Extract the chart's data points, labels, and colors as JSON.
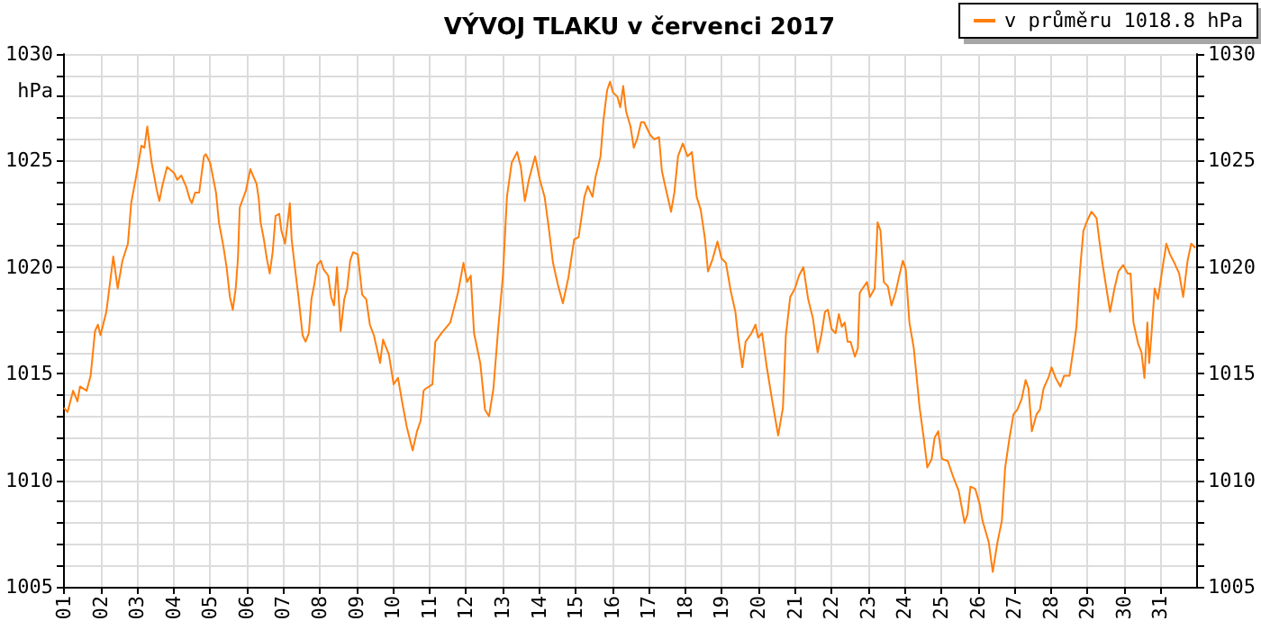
{
  "chart_data": {
    "type": "line",
    "title": "VÝVOJ TLAKU v červenci 2017",
    "ylabel": "hPa",
    "xlim": [
      1,
      32
    ],
    "xticks": [
      {
        "value": 1,
        "label": "01"
      },
      {
        "value": 2,
        "label": "02"
      },
      {
        "value": 3,
        "label": "03"
      },
      {
        "value": 4,
        "label": "04"
      },
      {
        "value": 5,
        "label": "05"
      },
      {
        "value": 6,
        "label": "06"
      },
      {
        "value": 7,
        "label": "07"
      },
      {
        "value": 8,
        "label": "08"
      },
      {
        "value": 9,
        "label": "09"
      },
      {
        "value": 10,
        "label": "10"
      },
      {
        "value": 11,
        "label": "11"
      },
      {
        "value": 12,
        "label": "12"
      },
      {
        "value": 13,
        "label": "13"
      },
      {
        "value": 14,
        "label": "14"
      },
      {
        "value": 15,
        "label": "15"
      },
      {
        "value": 16,
        "label": "16"
      },
      {
        "value": 17,
        "label": "17"
      },
      {
        "value": 18,
        "label": "18"
      },
      {
        "value": 19,
        "label": "19"
      },
      {
        "value": 20,
        "label": "20"
      },
      {
        "value": 21,
        "label": "21"
      },
      {
        "value": 22,
        "label": "22"
      },
      {
        "value": 23,
        "label": "23"
      },
      {
        "value": 24,
        "label": "24"
      },
      {
        "value": 25,
        "label": "25"
      },
      {
        "value": 26,
        "label": "26"
      },
      {
        "value": 27,
        "label": "27"
      },
      {
        "value": 28,
        "label": "28"
      },
      {
        "value": 29,
        "label": "29"
      },
      {
        "value": 30,
        "label": "30"
      },
      {
        "value": 31,
        "label": "31"
      }
    ],
    "ylim": [
      1005,
      1030
    ],
    "yticks": [
      1005,
      {
        "value": 1006,
        "label": null
      },
      {
        "value": 1007,
        "label": null
      },
      {
        "value": 1008,
        "label": null
      },
      {
        "value": 1009,
        "label": null
      },
      1010,
      {
        "value": 1011,
        "label": null
      },
      {
        "value": 1012,
        "label": null
      },
      {
        "value": 1013,
        "label": null
      },
      {
        "value": 1014,
        "label": null
      },
      1015,
      {
        "value": 1016,
        "label": null
      },
      {
        "value": 1017,
        "label": null
      },
      {
        "value": 1018,
        "label": null
      },
      {
        "value": 1019,
        "label": null
      },
      1020,
      {
        "value": 1021,
        "label": null
      },
      {
        "value": 1022,
        "label": null
      },
      {
        "value": 1023,
        "label": null
      },
      {
        "value": 1024,
        "label": null
      },
      1025,
      {
        "value": 1026,
        "label": null
      },
      {
        "value": 1027,
        "label": null
      },
      {
        "value": 1028,
        "label": null
      },
      {
        "value": 1029,
        "label": null
      },
      1030
    ],
    "y2lim": [
      1005,
      1030
    ],
    "y2ticks": [
      1005,
      {
        "value": 1006,
        "label": null
      },
      {
        "value": 1007,
        "label": null
      },
      {
        "value": 1008,
        "label": null
      },
      {
        "value": 1009,
        "label": null
      },
      1010,
      {
        "value": 1011,
        "label": null
      },
      {
        "value": 1012,
        "label": null
      },
      {
        "value": 1013,
        "label": null
      },
      {
        "value": 1014,
        "label": null
      },
      1015,
      {
        "value": 1016,
        "label": null
      },
      {
        "value": 1017,
        "label": null
      },
      {
        "value": 1018,
        "label": null
      },
      {
        "value": 1019,
        "label": null
      },
      1020,
      {
        "value": 1021,
        "label": null
      },
      {
        "value": 1022,
        "label": null
      },
      {
        "value": 1023,
        "label": null
      },
      {
        "value": 1024,
        "label": null
      },
      1025,
      {
        "value": 1026,
        "label": null
      },
      {
        "value": 1027,
        "label": null
      },
      {
        "value": 1028,
        "label": null
      },
      {
        "value": 1029,
        "label": null
      },
      1030
    ],
    "grid": true,
    "legend": "top right",
    "marker": "none",
    "line_style": "solid",
    "series": [
      {
        "name": "v průměru 1018.8 hPa",
        "color": "#ff7f0e",
        "x": [
          1.0,
          1.1,
          1.25,
          1.37,
          1.44,
          1.62,
          1.73,
          1.85,
          1.93,
          2.0,
          2.16,
          2.27,
          2.35,
          2.47,
          2.6,
          2.75,
          2.84,
          2.99,
          3.12,
          3.2,
          3.28,
          3.4,
          3.53,
          3.61,
          3.69,
          3.82,
          4.02,
          4.1,
          4.21,
          4.34,
          4.44,
          4.5,
          4.59,
          4.7,
          4.83,
          4.88,
          5.0,
          5.16,
          5.24,
          5.36,
          5.45,
          5.54,
          5.62,
          5.7,
          5.76,
          5.81,
          5.98,
          6.1,
          6.17,
          6.27,
          6.33,
          6.38,
          6.47,
          6.55,
          6.63,
          6.71,
          6.79,
          6.89,
          6.95,
          7.05,
          7.12,
          7.18,
          7.23,
          7.31,
          7.41,
          7.53,
          7.61,
          7.7,
          7.77,
          7.85,
          7.93,
          8.03,
          8.1,
          8.23,
          8.31,
          8.39,
          8.47,
          8.57,
          8.67,
          8.75,
          8.83,
          8.91,
          9.04,
          9.16,
          9.27,
          9.37,
          9.48,
          9.65,
          9.73,
          9.89,
          10.02,
          10.14,
          10.25,
          10.38,
          10.54,
          10.66,
          10.76,
          10.84,
          10.9,
          11.08,
          11.16,
          11.33,
          11.57,
          11.78,
          11.93,
          12.03,
          12.13,
          12.22,
          12.39,
          12.52,
          12.63,
          12.75,
          12.88,
          13.01,
          13.12,
          13.25,
          13.4,
          13.5,
          13.61,
          13.72,
          13.89,
          14.02,
          14.15,
          14.26,
          14.38,
          14.51,
          14.65,
          14.8,
          14.96,
          15.08,
          15.24,
          15.33,
          15.46,
          15.54,
          15.68,
          15.76,
          15.86,
          15.94,
          16.02,
          16.14,
          16.22,
          16.3,
          16.38,
          16.5,
          16.59,
          16.68,
          16.79,
          16.87,
          17.04,
          17.15,
          17.28,
          17.36,
          17.49,
          17.61,
          17.7,
          17.8,
          17.93,
          18.06,
          18.18,
          18.31,
          18.42,
          18.54,
          18.62,
          18.75,
          18.88,
          18.99,
          19.11,
          19.24,
          19.37,
          19.44,
          19.56,
          19.65,
          19.81,
          19.92,
          19.99,
          20.1,
          20.22,
          20.38,
          20.54,
          20.67,
          20.75,
          20.87,
          21.0,
          21.11,
          21.23,
          21.36,
          21.49,
          21.62,
          21.72,
          21.82,
          21.9,
          22.0,
          22.11,
          22.2,
          22.28,
          22.36,
          22.44,
          22.52,
          22.64,
          22.72,
          22.77,
          22.89,
          22.97,
          23.05,
          23.18,
          23.26,
          23.34,
          23.43,
          23.54,
          23.64,
          23.75,
          23.84,
          23.95,
          24.03,
          24.13,
          24.25,
          24.33,
          24.41,
          24.52,
          24.62,
          24.74,
          24.82,
          24.92,
          25.02,
          25.18,
          25.34,
          25.48,
          25.64,
          25.72,
          25.8,
          25.93,
          26.05,
          26.13,
          26.3,
          26.41,
          26.54,
          26.66,
          26.75,
          26.87,
          26.98,
          27.08,
          27.2,
          27.31,
          27.39,
          27.48,
          27.61,
          27.7,
          27.8,
          27.93,
          28.02,
          28.13,
          28.26,
          28.36,
          28.51,
          28.62,
          28.7,
          28.8,
          28.89,
          29.0,
          29.11,
          29.25,
          29.33,
          29.41,
          29.52,
          29.62,
          29.74,
          29.85,
          29.98,
          30.1,
          30.18,
          30.26,
          30.39,
          30.48,
          30.56,
          30.64,
          30.69,
          30.75,
          30.84,
          30.93,
          31.05,
          31.16,
          31.26,
          31.38,
          31.51,
          31.62,
          31.74,
          31.84,
          31.95
        ],
        "values": [
          1013.4,
          1013.2,
          1014.2,
          1013.7,
          1014.4,
          1014.2,
          1014.9,
          1017.0,
          1017.3,
          1016.8,
          1017.9,
          1019.4,
          1020.5,
          1019.0,
          1020.3,
          1021.1,
          1023.0,
          1024.4,
          1025.7,
          1025.6,
          1026.6,
          1024.9,
          1023.7,
          1023.1,
          1023.8,
          1024.7,
          1024.4,
          1024.1,
          1024.3,
          1023.8,
          1023.2,
          1023.0,
          1023.5,
          1023.5,
          1025.2,
          1025.3,
          1024.9,
          1023.5,
          1022.1,
          1021.0,
          1020.0,
          1018.6,
          1018.0,
          1019.0,
          1020.4,
          1022.8,
          1023.6,
          1024.6,
          1024.3,
          1023.9,
          1023.2,
          1022.1,
          1021.3,
          1020.4,
          1019.7,
          1020.7,
          1022.4,
          1022.5,
          1021.7,
          1021.1,
          1022.1,
          1023.0,
          1021.3,
          1020.1,
          1018.7,
          1016.8,
          1016.5,
          1016.9,
          1018.5,
          1019.2,
          1020.1,
          1020.3,
          1019.9,
          1019.6,
          1018.6,
          1018.2,
          1020.0,
          1017.0,
          1018.5,
          1019.0,
          1020.3,
          1020.7,
          1020.6,
          1018.7,
          1018.5,
          1017.3,
          1016.8,
          1015.5,
          1016.6,
          1015.9,
          1014.5,
          1014.8,
          1013.7,
          1012.5,
          1011.4,
          1012.3,
          1012.8,
          1014.2,
          1014.3,
          1014.5,
          1016.5,
          1016.9,
          1017.4,
          1018.8,
          1020.2,
          1019.3,
          1019.6,
          1016.9,
          1015.5,
          1013.3,
          1013.0,
          1014.3,
          1017.1,
          1019.6,
          1023.3,
          1024.9,
          1025.4,
          1024.7,
          1023.1,
          1024.1,
          1025.2,
          1024.1,
          1023.3,
          1021.9,
          1020.2,
          1019.2,
          1018.3,
          1019.5,
          1021.3,
          1021.4,
          1023.3,
          1023.8,
          1023.3,
          1024.2,
          1025.2,
          1026.9,
          1028.3,
          1028.7,
          1028.2,
          1028.0,
          1027.5,
          1028.5,
          1027.3,
          1026.6,
          1025.6,
          1026.0,
          1026.8,
          1026.8,
          1026.2,
          1026.0,
          1026.1,
          1024.5,
          1023.5,
          1022.6,
          1023.5,
          1025.2,
          1025.8,
          1025.2,
          1025.4,
          1023.3,
          1022.7,
          1021.3,
          1019.8,
          1020.4,
          1021.2,
          1020.4,
          1020.2,
          1018.9,
          1017.9,
          1016.8,
          1015.3,
          1016.5,
          1016.9,
          1017.3,
          1016.7,
          1016.9,
          1015.4,
          1013.7,
          1012.1,
          1013.4,
          1016.8,
          1018.6,
          1019.0,
          1019.6,
          1020.0,
          1018.5,
          1017.6,
          1016.0,
          1016.8,
          1017.9,
          1018.0,
          1017.1,
          1016.9,
          1017.8,
          1017.2,
          1017.4,
          1016.5,
          1016.5,
          1015.8,
          1016.2,
          1018.8,
          1019.1,
          1019.3,
          1018.6,
          1019.0,
          1022.1,
          1021.7,
          1019.3,
          1019.1,
          1018.2,
          1018.8,
          1019.5,
          1020.3,
          1019.9,
          1017.4,
          1016.2,
          1014.8,
          1013.4,
          1012.0,
          1010.6,
          1011.0,
          1012.0,
          1012.3,
          1011.0,
          1010.9,
          1010.1,
          1009.5,
          1008.0,
          1008.4,
          1009.7,
          1009.6,
          1008.9,
          1008.1,
          1007.1,
          1005.7,
          1007.1,
          1008.1,
          1010.6,
          1012.0,
          1013.1,
          1013.3,
          1013.8,
          1014.7,
          1014.3,
          1012.3,
          1013.1,
          1013.3,
          1014.3,
          1014.8,
          1015.3,
          1014.8,
          1014.4,
          1014.9,
          1014.9,
          1016.2,
          1017.2,
          1019.9,
          1021.7,
          1022.2,
          1022.6,
          1022.3,
          1021.2,
          1020.2,
          1019.0,
          1017.9,
          1019.0,
          1019.8,
          1020.1,
          1019.7,
          1019.7,
          1017.4,
          1016.4,
          1016.0,
          1014.8,
          1017.4,
          1015.5,
          1016.8,
          1019.0,
          1018.5,
          1019.9,
          1021.1,
          1020.6,
          1020.2,
          1019.7,
          1018.6,
          1020.3,
          1021.1,
          1020.9
        ]
      }
    ]
  }
}
